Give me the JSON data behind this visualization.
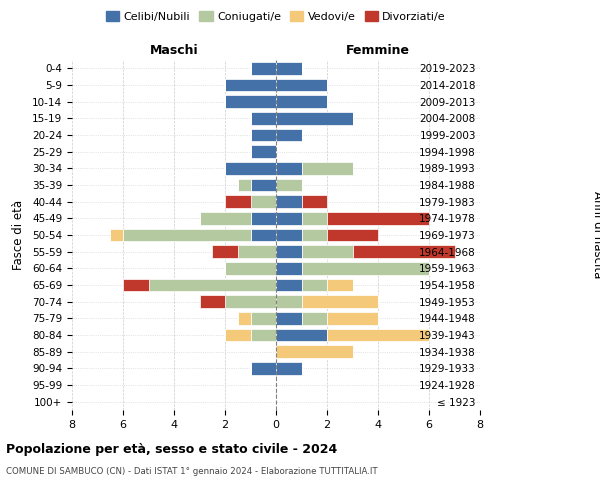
{
  "age_groups": [
    "100+",
    "95-99",
    "90-94",
    "85-89",
    "80-84",
    "75-79",
    "70-74",
    "65-69",
    "60-64",
    "55-59",
    "50-54",
    "45-49",
    "40-44",
    "35-39",
    "30-34",
    "25-29",
    "20-24",
    "15-19",
    "10-14",
    "5-9",
    "0-4"
  ],
  "birth_years": [
    "≤ 1923",
    "1924-1928",
    "1929-1933",
    "1934-1938",
    "1939-1943",
    "1944-1948",
    "1949-1953",
    "1954-1958",
    "1959-1963",
    "1964-1968",
    "1969-1973",
    "1974-1978",
    "1979-1983",
    "1984-1988",
    "1989-1993",
    "1994-1998",
    "1999-2003",
    "2004-2008",
    "2009-2013",
    "2014-2018",
    "2019-2023"
  ],
  "colors": {
    "celibi": "#4472a8",
    "coniugati": "#b5c9a0",
    "vedovi": "#f5c97a",
    "divorziati": "#c0382b"
  },
  "maschi": {
    "celibi": [
      0,
      0,
      1,
      0,
      0,
      0,
      0,
      0,
      0,
      0,
      1,
      1,
      0,
      1,
      2,
      1,
      1,
      1,
      2,
      2,
      1
    ],
    "coniugati": [
      0,
      0,
      0,
      0,
      1,
      1,
      2,
      5,
      2,
      1.5,
      5,
      2,
      1,
      0.5,
      0,
      0,
      0,
      0,
      0,
      0,
      0
    ],
    "vedovi": [
      0,
      0,
      0,
      0,
      1,
      0.5,
      0,
      0,
      0,
      0,
      0.5,
      0,
      0,
      0,
      0,
      0,
      0,
      0,
      0,
      0,
      0
    ],
    "divorziati": [
      0,
      0,
      0,
      0,
      0,
      0,
      1,
      1,
      0,
      1,
      0,
      0,
      1,
      0,
      0,
      0,
      0,
      0,
      0,
      0,
      0
    ]
  },
  "femmine": {
    "celibi": [
      0,
      0,
      1,
      0,
      2,
      1,
      0,
      1,
      1,
      1,
      1,
      1,
      1,
      0,
      1,
      0,
      1,
      3,
      2,
      2,
      1
    ],
    "coniugati": [
      0,
      0,
      0,
      0,
      0,
      1,
      1,
      1,
      5,
      2,
      1,
      1,
      0,
      1,
      2,
      0,
      0,
      0,
      0,
      0,
      0
    ],
    "vedovi": [
      0,
      0,
      0,
      3,
      4,
      2,
      3,
      1,
      0,
      0,
      0,
      0,
      0,
      0,
      0,
      0,
      0,
      0,
      0,
      0,
      0
    ],
    "divorziati": [
      0,
      0,
      0,
      0,
      0,
      0,
      0,
      0,
      0,
      4,
      2,
      4,
      1,
      0,
      0,
      0,
      0,
      0,
      0,
      0,
      0
    ]
  },
  "xlim": [
    -8,
    8
  ],
  "xticks": [
    -8,
    -6,
    -4,
    -2,
    0,
    2,
    4,
    6,
    8
  ],
  "xticklabels": [
    "8",
    "6",
    "4",
    "2",
    "0",
    "2",
    "4",
    "6",
    "8"
  ],
  "title": "Popolazione per età, sesso e stato civile - 2024",
  "subtitle": "COMUNE DI SAMBUCO (CN) - Dati ISTAT 1° gennaio 2024 - Elaborazione TUTTITALIA.IT",
  "ylabel_left": "Fasce di età",
  "ylabel_right": "Anni di nascita",
  "header_left": "Maschi",
  "header_right": "Femmine",
  "legend_labels": [
    "Celibi/Nubili",
    "Coniugati/e",
    "Vedovi/e",
    "Divorziati/e"
  ],
  "background_color": "#ffffff",
  "grid_color": "#cccccc"
}
